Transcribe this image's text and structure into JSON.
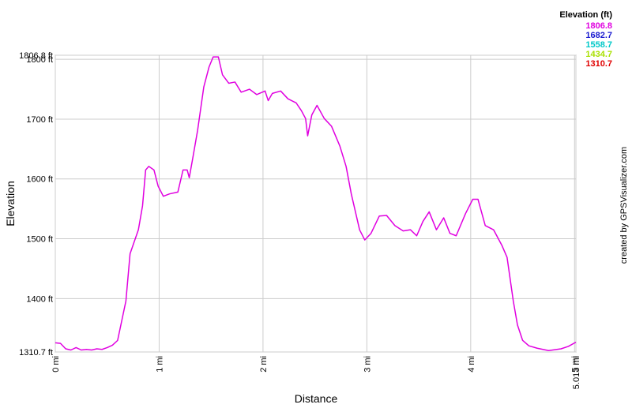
{
  "chart_data": {
    "type": "line",
    "title": "Elevation (ft)",
    "xlabel": "Distance",
    "ylabel": "Elevation",
    "credit": "created by GPSVisualizer.com",
    "xlim": [
      0,
      5.013
    ],
    "ylim": [
      1310.7,
      1806.8
    ],
    "xticks": [
      {
        "value": 0,
        "label": "0 mi"
      },
      {
        "value": 1,
        "label": "1 mi"
      },
      {
        "value": 2,
        "label": "2 mi"
      },
      {
        "value": 3,
        "label": "3 mi"
      },
      {
        "value": 4,
        "label": "4 mi"
      },
      {
        "value": 5,
        "label": "5 mi"
      },
      {
        "value": 5.013,
        "label": "5.013 mi"
      }
    ],
    "yticks": [
      {
        "value": 1310.7,
        "label": "1310.7 ft"
      },
      {
        "value": 1400,
        "label": "1400 ft"
      },
      {
        "value": 1500,
        "label": "1500 ft"
      },
      {
        "value": 1600,
        "label": "1600 ft"
      },
      {
        "value": 1700,
        "label": "1700 ft"
      },
      {
        "value": 1800,
        "label": "1800 ft"
      },
      {
        "value": 1806.8,
        "label": "1806.8 ft"
      }
    ],
    "grid": true,
    "color_scale": [
      {
        "value": 1806.8,
        "color": "#e000e0"
      },
      {
        "value": 1682.7,
        "color": "#1a1ad0"
      },
      {
        "value": 1558.7,
        "color": "#00c8c8"
      },
      {
        "value": 1434.7,
        "color": "#a8e000"
      },
      {
        "value": 1310.7,
        "color": "#e00000"
      }
    ],
    "x": [
      0,
      0.05,
      0.1,
      0.15,
      0.2,
      0.25,
      0.3,
      0.35,
      0.4,
      0.45,
      0.5,
      0.55,
      0.6,
      0.68,
      0.72,
      0.8,
      0.84,
      0.87,
      0.9,
      0.95,
      0.99,
      1.04,
      1.1,
      1.18,
      1.23,
      1.27,
      1.29,
      1.33,
      1.37,
      1.43,
      1.48,
      1.52,
      1.57,
      1.61,
      1.67,
      1.73,
      1.79,
      1.87,
      1.94,
      2.02,
      2.05,
      2.09,
      2.17,
      2.24,
      2.32,
      2.37,
      2.41,
      2.43,
      2.47,
      2.52,
      2.59,
      2.66,
      2.74,
      2.8,
      2.85,
      2.93,
      2.98,
      3.04,
      3.12,
      3.19,
      3.27,
      3.35,
      3.42,
      3.48,
      3.54,
      3.6,
      3.67,
      3.74,
      3.8,
      3.86,
      3.95,
      4.02,
      4.07,
      4.14,
      4.22,
      4.3,
      4.35,
      4.41,
      4.45,
      4.5,
      4.56,
      4.64,
      4.75,
      4.87,
      4.94,
      5.013
    ],
    "series": [
      {
        "name": "Elevation",
        "values": [
          1326,
          1325,
          1316,
          1314,
          1318,
          1314,
          1315,
          1314,
          1316,
          1315,
          1318,
          1322,
          1330,
          1396,
          1475,
          1515,
          1555,
          1615,
          1621,
          1615,
          1588,
          1571,
          1575,
          1578,
          1615,
          1615,
          1602,
          1641,
          1681,
          1754,
          1787,
          1804,
          1804,
          1774,
          1760,
          1762,
          1745,
          1750,
          1741,
          1747,
          1731,
          1743,
          1747,
          1734,
          1727,
          1714,
          1701,
          1672,
          1707,
          1723,
          1701,
          1688,
          1655,
          1621,
          1575,
          1515,
          1498,
          1509,
          1538,
          1539,
          1522,
          1513,
          1515,
          1505,
          1529,
          1545,
          1515,
          1535,
          1509,
          1505,
          1542,
          1566,
          1566,
          1522,
          1515,
          1489,
          1469,
          1396,
          1356,
          1330,
          1321,
          1317,
          1313,
          1316,
          1320,
          1327
        ]
      }
    ]
  }
}
